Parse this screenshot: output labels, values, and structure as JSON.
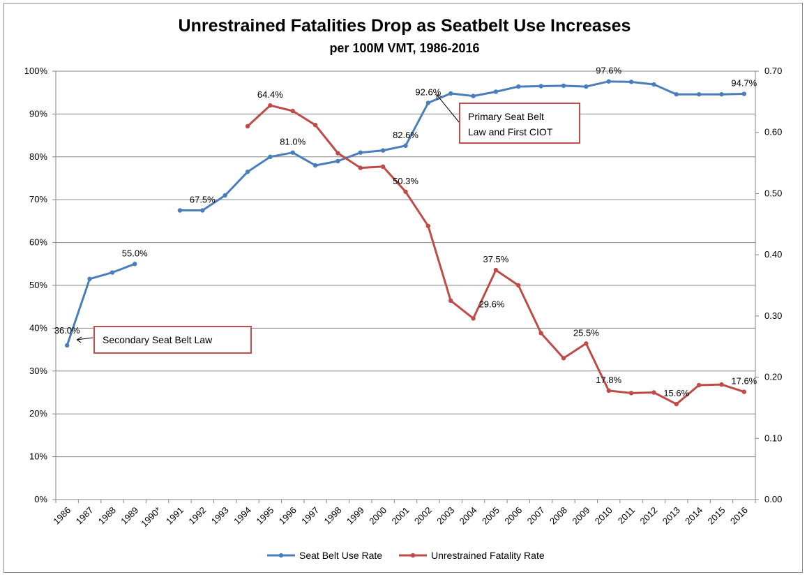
{
  "chart_data": {
    "type": "line",
    "title": "Unrestrained Fatalities Drop as Seatbelt Use Increases",
    "subtitle": "per 100M VMT, 1986-2016",
    "categories": [
      "1986",
      "1987",
      "1988",
      "1989",
      "1990*",
      "1991",
      "1992",
      "1993",
      "1994",
      "1995",
      "1996",
      "1997",
      "1998",
      "1999",
      "2000",
      "2001",
      "2002",
      "2003",
      "2004",
      "2005",
      "2006",
      "2007",
      "2008",
      "2009",
      "2010",
      "2011",
      "2012",
      "2013",
      "2014",
      "2015",
      "2016"
    ],
    "y_left": {
      "min": 0,
      "max": 100,
      "step": 10,
      "ticks": [
        "0%",
        "10%",
        "20%",
        "30%",
        "40%",
        "50%",
        "60%",
        "70%",
        "80%",
        "90%",
        "100%"
      ]
    },
    "y_right": {
      "min": 0,
      "max": 0.7,
      "step": 0.1,
      "ticks": [
        "0.00",
        "0.10",
        "0.20",
        "0.30",
        "0.40",
        "0.50",
        "0.60",
        "0.70"
      ]
    },
    "series": [
      {
        "name": "Seat Belt Use Rate",
        "axis": "left",
        "color": "#4a7ebb",
        "values": [
          36.0,
          51.5,
          53.0,
          55.0,
          null,
          67.5,
          67.5,
          71.0,
          76.5,
          80.0,
          81.0,
          78.0,
          79.0,
          81.0,
          81.5,
          82.6,
          92.6,
          94.8,
          94.2,
          95.2,
          96.4,
          96.5,
          96.6,
          96.4,
          97.6,
          97.5,
          96.9,
          94.6,
          94.6,
          94.6,
          94.7
        ]
      },
      {
        "name": "Unrestrained Fatality Rate",
        "axis": "right",
        "color": "#be4b48",
        "values": [
          null,
          null,
          null,
          null,
          null,
          null,
          null,
          null,
          0.61,
          0.644,
          0.635,
          0.612,
          0.566,
          0.542,
          0.544,
          0.503,
          0.447,
          0.325,
          0.296,
          0.375,
          0.35,
          0.272,
          0.231,
          0.255,
          0.178,
          0.174,
          0.175,
          0.156,
          0.187,
          0.188,
          0.176
        ]
      }
    ],
    "data_labels": [
      {
        "series": 0,
        "index": 0,
        "text": "36.0%",
        "pos": "center"
      },
      {
        "series": 0,
        "index": 3,
        "text": "55.0%",
        "pos": "above"
      },
      {
        "series": 0,
        "index": 6,
        "text": "67.5%",
        "pos": "above"
      },
      {
        "series": 0,
        "index": 10,
        "text": "81.0%",
        "pos": "above"
      },
      {
        "series": 0,
        "index": 15,
        "text": "82.6%",
        "pos": "above"
      },
      {
        "series": 0,
        "index": 16,
        "text": "92.6%",
        "pos": "above"
      },
      {
        "series": 0,
        "index": 24,
        "text": "97.6%",
        "pos": "above"
      },
      {
        "series": 0,
        "index": 30,
        "text": "94.7%",
        "pos": "above"
      },
      {
        "series": 1,
        "index": 9,
        "text": "64.4%",
        "pos": "above"
      },
      {
        "series": 1,
        "index": 15,
        "text": "50.3%",
        "pos": "above"
      },
      {
        "series": 1,
        "index": 18,
        "text": "29.6%",
        "pos": "left"
      },
      {
        "series": 1,
        "index": 19,
        "text": "37.5%",
        "pos": "above"
      },
      {
        "series": 1,
        "index": 23,
        "text": "25.5%",
        "pos": "above"
      },
      {
        "series": 1,
        "index": 24,
        "text": "17.8%",
        "pos": "above"
      },
      {
        "series": 1,
        "index": 27,
        "text": "15.6%",
        "pos": "above"
      },
      {
        "series": 1,
        "index": 30,
        "text": "17.6%",
        "pos": "above"
      }
    ],
    "annotations": [
      {
        "text_lines": [
          "Secondary Seat Belt Law"
        ],
        "points_to_index": 0
      },
      {
        "text_lines": [
          "Primary Seat Belt",
          "Law and First CIOT"
        ],
        "points_to_index": 16
      }
    ],
    "legend_position": "bottom",
    "gridlines": true
  }
}
